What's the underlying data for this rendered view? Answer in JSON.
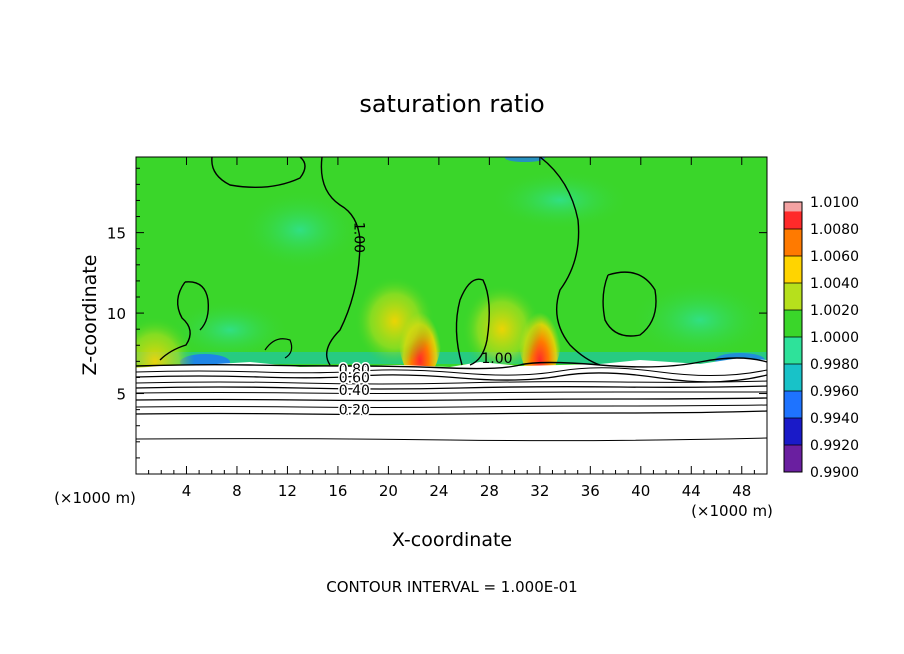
{
  "chart_data": {
    "type": "heatmap",
    "title": "saturation ratio",
    "xlabel": "X-coordinate",
    "ylabel": "Z-coordinate",
    "x_unit_left": "(×1000 m)",
    "x_unit_right": "(×1000 m)",
    "xlim": [
      0,
      50
    ],
    "ylim": [
      0,
      19.7
    ],
    "x_ticks": [
      4,
      8,
      12,
      16,
      20,
      24,
      28,
      32,
      36,
      40,
      44,
      48
    ],
    "y_ticks": [
      5,
      10,
      15
    ],
    "footer": "CONTOUR INTERVAL = 1.000E-01",
    "colorbar": {
      "levels": [
        "0.9900",
        "0.9920",
        "0.9940",
        "0.9960",
        "0.9980",
        "1.0000",
        "1.0020",
        "1.0040",
        "1.0060",
        "1.0080",
        "1.0100"
      ],
      "colors": [
        "#6a1fa0",
        "#1a1ac8",
        "#1e73ff",
        "#18c2c8",
        "#2ee29a",
        "#3ad62a",
        "#b6e01c",
        "#ffd400",
        "#ff7a00",
        "#ff2a2a",
        "#f4a3a3"
      ]
    },
    "contour_labels": [
      {
        "text": "1.00",
        "x": 17.3,
        "z": 14.7
      },
      {
        "text": "1.00",
        "x": 28.6,
        "z": 6.9
      },
      {
        "text": "0.80",
        "x": 17.3,
        "z": 6.2
      },
      {
        "text": "0.60",
        "x": 17.3,
        "z": 5.7
      },
      {
        "text": "0.40",
        "x": 17.3,
        "z": 4.9
      },
      {
        "text": "0.20",
        "x": 17.3,
        "z": 3.7
      }
    ],
    "cloud_base_z": 7.0,
    "hotspots": [
      {
        "x": 22.5,
        "z": 7.3,
        "value": 1.007
      },
      {
        "x": 32.0,
        "z": 7.3,
        "value": 1.0065
      },
      {
        "x": 20.5,
        "z": 9.5,
        "value": 1.003
      },
      {
        "x": 29.0,
        "z": 9.0,
        "value": 1.0025
      },
      {
        "x": 1.5,
        "z": 7.0,
        "value": 1.004
      }
    ]
  }
}
